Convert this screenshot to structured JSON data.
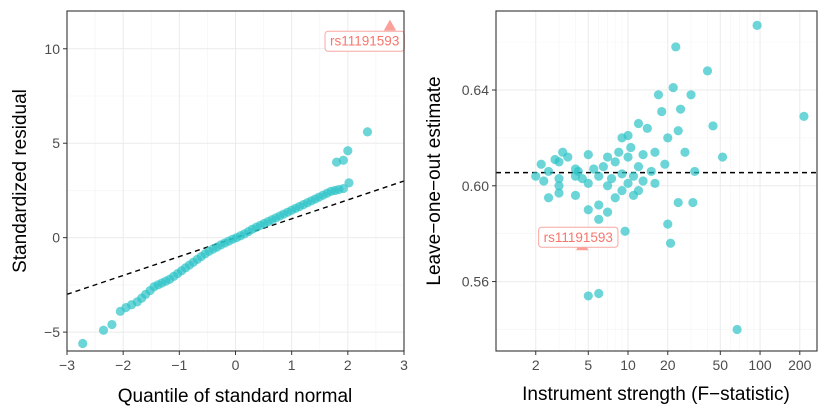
{
  "colors": {
    "points": "#2cc3c7",
    "outlier": "#f8766d",
    "annotation_text": "#f8766d"
  },
  "chart_data": [
    {
      "type": "scatter",
      "subtype": "qq-plot",
      "xlabel": "Quantile of standard normal",
      "ylabel": "Standardized residual",
      "xlim": [
        -3,
        3
      ],
      "ylim": [
        -6,
        12
      ],
      "x_ticks": [
        -3,
        -2,
        -1,
        0,
        1,
        2,
        3
      ],
      "y_ticks": [
        -5,
        0,
        5,
        10
      ],
      "reference_line": {
        "intercept": 0.0,
        "slope": 1.0,
        "style": "dashed"
      },
      "series": [
        {
          "name": "variants",
          "points": [
            [
              -2.72,
              -5.6
            ],
            [
              -2.35,
              -4.9
            ],
            [
              -2.2,
              -4.6
            ],
            [
              -2.05,
              -3.9
            ],
            [
              -1.95,
              -3.7
            ],
            [
              -1.85,
              -3.55
            ],
            [
              -1.75,
              -3.4
            ],
            [
              -1.67,
              -3.2
            ],
            [
              -1.6,
              -3.0
            ],
            [
              -1.52,
              -2.8
            ],
            [
              -1.45,
              -2.6
            ],
            [
              -1.38,
              -2.5
            ],
            [
              -1.31,
              -2.4
            ],
            [
              -1.24,
              -2.3
            ],
            [
              -1.17,
              -2.2
            ],
            [
              -1.1,
              -2.05
            ],
            [
              -1.03,
              -1.9
            ],
            [
              -0.96,
              -1.75
            ],
            [
              -0.89,
              -1.6
            ],
            [
              -0.82,
              -1.45
            ],
            [
              -0.75,
              -1.3
            ],
            [
              -0.68,
              -1.15
            ],
            [
              -0.61,
              -1.0
            ],
            [
              -0.54,
              -0.85
            ],
            [
              -0.47,
              -0.72
            ],
            [
              -0.4,
              -0.6
            ],
            [
              -0.33,
              -0.5
            ],
            [
              -0.26,
              -0.38
            ],
            [
              -0.19,
              -0.28
            ],
            [
              -0.12,
              -0.18
            ],
            [
              -0.05,
              -0.08
            ],
            [
              0.02,
              0.0
            ],
            [
              0.09,
              0.1
            ],
            [
              0.16,
              0.2
            ],
            [
              0.23,
              0.32
            ],
            [
              0.3,
              0.45
            ],
            [
              0.37,
              0.55
            ],
            [
              0.44,
              0.65
            ],
            [
              0.51,
              0.75
            ],
            [
              0.58,
              0.85
            ],
            [
              0.65,
              0.95
            ],
            [
              0.72,
              1.05
            ],
            [
              0.79,
              1.15
            ],
            [
              0.86,
              1.25
            ],
            [
              0.93,
              1.35
            ],
            [
              1.0,
              1.45
            ],
            [
              1.07,
              1.55
            ],
            [
              1.14,
              1.65
            ],
            [
              1.21,
              1.75
            ],
            [
              1.28,
              1.85
            ],
            [
              1.35,
              1.95
            ],
            [
              1.42,
              2.05
            ],
            [
              1.49,
              2.15
            ],
            [
              1.56,
              2.25
            ],
            [
              1.63,
              2.35
            ],
            [
              1.7,
              2.45
            ],
            [
              1.77,
              2.5
            ],
            [
              1.84,
              2.55
            ],
            [
              1.92,
              2.6
            ],
            [
              2.02,
              2.9
            ],
            [
              1.8,
              4.0
            ],
            [
              1.92,
              4.1
            ],
            [
              2.0,
              4.6
            ],
            [
              2.35,
              5.6
            ]
          ]
        },
        {
          "name": "outlier",
          "label": "rs11191593",
          "shape": "triangle",
          "points": [
            [
              2.75,
              11.2
            ]
          ]
        }
      ],
      "annotations": [
        {
          "text": "rs11191593",
          "x": 2.3,
          "y": 10.4
        }
      ]
    },
    {
      "type": "scatter",
      "xlabel": "Instrument strength (F−statistic)",
      "ylabel": "Leave−one−out estimate",
      "x_scale": "log10",
      "xlim": [
        1,
        270
      ],
      "ylim": [
        0.531,
        0.673
      ],
      "x_ticks": [
        2,
        5,
        10,
        20,
        50,
        100,
        200
      ],
      "x_tick_labels": [
        "2",
        "5",
        "10",
        "20",
        "50",
        "100",
        "200"
      ],
      "y_ticks": [
        0.56,
        0.6,
        0.64
      ],
      "y_tick_labels": [
        "0.56",
        "0.60",
        "0.64"
      ],
      "reference_line": {
        "y": 0.6055,
        "style": "dashed"
      },
      "series": [
        {
          "name": "variants",
          "points": [
            [
              95,
              0.667
            ],
            [
              215,
              0.629
            ],
            [
              67,
              0.54
            ],
            [
              6,
              0.555
            ],
            [
              5,
              0.554
            ],
            [
              44,
              0.625
            ],
            [
              52,
              0.612
            ],
            [
              40,
              0.648
            ],
            [
              30,
              0.638
            ],
            [
              25,
              0.632
            ],
            [
              22,
              0.641
            ],
            [
              23,
              0.658
            ],
            [
              17,
              0.638
            ],
            [
              18,
              0.631
            ],
            [
              14,
              0.624
            ],
            [
              12,
              0.626
            ],
            [
              10,
              0.621
            ],
            [
              9,
              0.62
            ],
            [
              24,
              0.623
            ],
            [
              20,
              0.62
            ],
            [
              27,
              0.614
            ],
            [
              32,
              0.606
            ],
            [
              31,
              0.593
            ],
            [
              24,
              0.593
            ],
            [
              21,
              0.576
            ],
            [
              20,
              0.584
            ],
            [
              19,
              0.609
            ],
            [
              16,
              0.614
            ],
            [
              15,
              0.606
            ],
            [
              13,
              0.613
            ],
            [
              12,
              0.608
            ],
            [
              11,
              0.604
            ],
            [
              11,
              0.596
            ],
            [
              9,
              0.598
            ],
            [
              8,
              0.595
            ],
            [
              7,
              0.6
            ],
            [
              7,
              0.589
            ],
            [
              6,
              0.592
            ],
            [
              6,
              0.586
            ],
            [
              5,
              0.59
            ],
            [
              4,
              0.607
            ],
            [
              3,
              0.61
            ],
            [
              4,
              0.604
            ],
            [
              3,
              0.6
            ],
            [
              5,
              0.601
            ],
            [
              6,
              0.604
            ],
            [
              2.5,
              0.606
            ],
            [
              2,
              0.604
            ],
            [
              3,
              0.597
            ],
            [
              4,
              0.596
            ],
            [
              2.5,
              0.595
            ],
            [
              2.2,
              0.609
            ],
            [
              3.5,
              0.612
            ],
            [
              5,
              0.613
            ],
            [
              7,
              0.612
            ],
            [
              8,
              0.61
            ],
            [
              10,
              0.612
            ],
            [
              9,
              0.605
            ],
            [
              13,
              0.602
            ],
            [
              12,
              0.598
            ],
            [
              16,
              0.601
            ],
            [
              3,
              0.603
            ],
            [
              2.8,
              0.611
            ],
            [
              4.2,
              0.606
            ],
            [
              4.5,
              0.603
            ],
            [
              5.5,
              0.607
            ],
            [
              6.5,
              0.608
            ],
            [
              7.5,
              0.603
            ],
            [
              8.5,
              0.614
            ],
            [
              10.5,
              0.616
            ],
            [
              2.3,
              0.602
            ],
            [
              3.2,
              0.614
            ],
            [
              9.5,
              0.581
            ],
            [
              10,
              0.601
            ]
          ]
        },
        {
          "name": "outlier",
          "label": "rs11191593",
          "shape": "triangle",
          "points": [
            [
              4.5,
              0.575
            ]
          ]
        }
      ],
      "annotations": [
        {
          "text": "rs11191593",
          "x": 4.2,
          "y": 0.5785
        }
      ]
    }
  ]
}
